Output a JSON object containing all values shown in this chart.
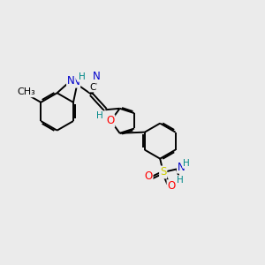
{
  "background_color": "#ebebeb",
  "atom_colors": {
    "C": "#000000",
    "N": "#0000cc",
    "O": "#ff0000",
    "S": "#cccc00",
    "H": "#008888",
    "default": "#000000"
  },
  "bond_color": "#000000",
  "bond_width": 1.4,
  "font_size": 8.5,
  "figsize": [
    3.0,
    3.0
  ],
  "dpi": 100
}
